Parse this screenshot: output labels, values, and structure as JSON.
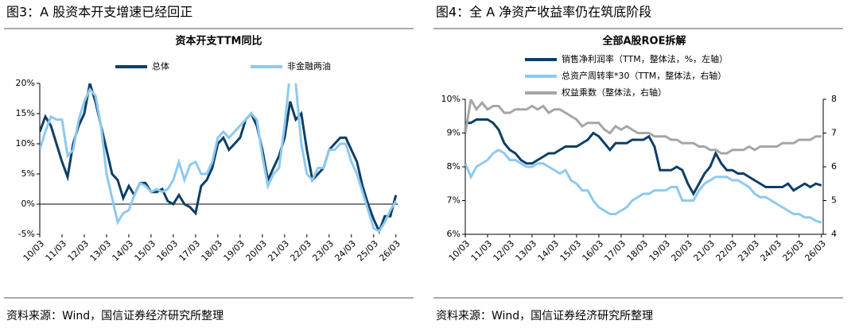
{
  "chart_data": [
    {
      "type": "line",
      "caption": "图3：A 股资本开支增速已经回正",
      "title": "资本开支TTM同比",
      "source": "资料来源：Wind，国信证券经济研究所整理",
      "x": [
        2010.17,
        2010.42,
        2010.67,
        2010.92,
        2011.17,
        2011.42,
        2011.67,
        2011.92,
        2012.17,
        2012.42,
        2012.67,
        2012.92,
        2013.17,
        2013.42,
        2013.67,
        2013.92,
        2014.17,
        2014.42,
        2014.67,
        2014.92,
        2015.17,
        2015.42,
        2015.67,
        2015.92,
        2016.17,
        2016.42,
        2016.67,
        2016.92,
        2017.17,
        2017.42,
        2017.67,
        2017.92,
        2018.17,
        2018.42,
        2018.67,
        2018.92,
        2019.17,
        2019.42,
        2019.67,
        2019.92,
        2020.17,
        2020.42,
        2020.67,
        2020.92,
        2021.17,
        2021.42,
        2021.67,
        2021.92,
        2022.17,
        2022.42,
        2022.67,
        2022.92,
        2023.17,
        2023.42,
        2023.67,
        2023.92,
        2024.17,
        2024.42,
        2024.67,
        2024.92,
        2025.17,
        2025.42,
        2025.67,
        2025.92,
        2026.17
      ],
      "xlim": [
        2010.17,
        2026.25
      ],
      "xticks": [
        {
          "value": 2010.17,
          "label": "10/03"
        },
        {
          "value": 2011.17,
          "label": "11/03"
        },
        {
          "value": 2012.17,
          "label": "12/03"
        },
        {
          "value": 2013.17,
          "label": "13/03"
        },
        {
          "value": 2014.17,
          "label": "14/03"
        },
        {
          "value": 2015.17,
          "label": "15/03"
        },
        {
          "value": 2016.17,
          "label": "16/03"
        },
        {
          "value": 2017.17,
          "label": "17/03"
        },
        {
          "value": 2018.17,
          "label": "18/03"
        },
        {
          "value": 2019.17,
          "label": "19/03"
        },
        {
          "value": 2020.17,
          "label": "20/03"
        },
        {
          "value": 2021.17,
          "label": "21/03"
        },
        {
          "value": 2022.17,
          "label": "22/03"
        },
        {
          "value": 2023.17,
          "label": "23/03"
        },
        {
          "value": 2024.17,
          "label": "24/03"
        },
        {
          "value": 2025.17,
          "label": "25/03"
        },
        {
          "value": 2026.17,
          "label": "26/03"
        }
      ],
      "ylim": [
        -5,
        20
      ],
      "yticks": [
        {
          "value": -5,
          "label": "-5%"
        },
        {
          "value": 0,
          "label": "0%"
        },
        {
          "value": 5,
          "label": "5%"
        },
        {
          "value": 10,
          "label": "10%"
        },
        {
          "value": 15,
          "label": "15%"
        },
        {
          "value": 20,
          "label": "20%"
        }
      ],
      "series": [
        {
          "name": "总体",
          "color": "#0d3f66",
          "values": [
            12,
            14.5,
            13,
            10,
            7,
            4.5,
            10,
            13,
            15,
            20,
            17,
            13,
            9,
            5,
            4,
            1,
            3,
            1.5,
            3.5,
            3.5,
            2,
            2,
            2.5,
            0.5,
            0,
            1.5,
            0,
            -0.5,
            -1.5,
            3,
            4,
            6,
            10,
            11,
            9,
            10,
            11,
            14,
            15,
            13,
            9,
            4,
            6,
            8,
            11,
            17,
            14,
            15,
            9,
            4,
            5,
            6,
            9,
            10,
            11,
            11,
            9,
            7,
            3,
            0,
            -2.5,
            -4.5,
            -2,
            -2,
            1.5
          ]
        },
        {
          "name": "非金融两油",
          "color": "#8ec9ef",
          "values": [
            9,
            12,
            14.5,
            14,
            14,
            8,
            9,
            14,
            17,
            19,
            18,
            13,
            5,
            1,
            -3,
            -1.5,
            -1,
            1.5,
            3.5,
            3,
            2,
            2.5,
            2,
            2.5,
            4,
            7,
            4,
            6.5,
            7,
            5,
            5,
            7,
            11,
            12,
            11,
            12,
            13,
            14,
            15,
            14,
            8,
            3,
            5,
            6,
            13,
            22,
            20,
            10,
            5,
            4,
            6,
            6,
            9,
            9,
            10,
            10,
            7,
            5,
            2,
            -1,
            -4,
            -4.5,
            -3,
            -1,
            0.5
          ]
        }
      ]
    },
    {
      "type": "line",
      "caption": "图4：全 A 净资产收益率仍在筑底阶段",
      "title": "全部A股ROE拆解",
      "source": "资料来源：Wind，国信证券经济研究所整理",
      "x": [
        2010.17,
        2010.42,
        2010.67,
        2010.92,
        2011.17,
        2011.42,
        2011.67,
        2011.92,
        2012.17,
        2012.42,
        2012.67,
        2012.92,
        2013.17,
        2013.42,
        2013.67,
        2013.92,
        2014.17,
        2014.42,
        2014.67,
        2014.92,
        2015.17,
        2015.42,
        2015.67,
        2015.92,
        2016.17,
        2016.42,
        2016.67,
        2016.92,
        2017.17,
        2017.42,
        2017.67,
        2017.92,
        2018.17,
        2018.42,
        2018.67,
        2018.92,
        2019.17,
        2019.42,
        2019.67,
        2019.92,
        2020.17,
        2020.42,
        2020.67,
        2020.92,
        2021.17,
        2021.42,
        2021.67,
        2021.92,
        2022.17,
        2022.42,
        2022.67,
        2022.92,
        2023.17,
        2023.42,
        2023.67,
        2023.92,
        2024.17,
        2024.42,
        2024.67,
        2024.92,
        2025.17,
        2025.42,
        2025.67,
        2025.92,
        2026.17
      ],
      "xlim": [
        2010.17,
        2026.25
      ],
      "xticks": [
        {
          "value": 2010.17,
          "label": "10/03"
        },
        {
          "value": 2011.17,
          "label": "11/03"
        },
        {
          "value": 2012.17,
          "label": "12/03"
        },
        {
          "value": 2013.17,
          "label": "13/03"
        },
        {
          "value": 2014.17,
          "label": "14/03"
        },
        {
          "value": 2015.17,
          "label": "15/03"
        },
        {
          "value": 2016.17,
          "label": "16/03"
        },
        {
          "value": 2017.17,
          "label": "17/03"
        },
        {
          "value": 2018.17,
          "label": "18/03"
        },
        {
          "value": 2019.17,
          "label": "19/03"
        },
        {
          "value": 2020.17,
          "label": "20/03"
        },
        {
          "value": 2021.17,
          "label": "21/03"
        },
        {
          "value": 2022.17,
          "label": "22/03"
        },
        {
          "value": 2023.17,
          "label": "23/03"
        },
        {
          "value": 2024.17,
          "label": "24/03"
        },
        {
          "value": 2025.17,
          "label": "25/03"
        },
        {
          "value": 2026.17,
          "label": "26/03"
        }
      ],
      "ylim": [
        6,
        10
      ],
      "yticks": [
        {
          "value": 6,
          "label": "6%"
        },
        {
          "value": 7,
          "label": "7%"
        },
        {
          "value": 8,
          "label": "8%"
        },
        {
          "value": 9,
          "label": "9%"
        },
        {
          "value": 10,
          "label": "10%"
        }
      ],
      "y2lim": [
        4,
        8
      ],
      "y2ticks": [
        4,
        5,
        6,
        7,
        8
      ],
      "series": [
        {
          "name": "销售净利润率（TTM，整体法，%，左轴）",
          "color": "#0d3f66",
          "values": [
            9.3,
            9.3,
            9.4,
            9.4,
            9.4,
            9.3,
            9.1,
            8.7,
            8.5,
            8.4,
            8.2,
            8.1,
            8.1,
            8.2,
            8.3,
            8.4,
            8.4,
            8.5,
            8.6,
            8.6,
            8.6,
            8.7,
            8.8,
            9.0,
            8.9,
            8.7,
            8.5,
            8.7,
            8.7,
            8.7,
            8.8,
            8.8,
            8.8,
            8.9,
            8.6,
            7.9,
            7.9,
            7.9,
            8.0,
            7.9,
            7.5,
            7.2,
            7.5,
            7.8,
            8.0,
            8.4,
            8.1,
            7.9,
            7.9,
            7.8,
            7.8,
            7.7,
            7.6,
            7.5,
            7.4,
            7.4,
            7.4,
            7.4,
            7.5,
            7.3,
            7.4,
            7.5,
            7.4,
            7.5,
            7.45
          ]
        },
        {
          "name": "总资产周转率*30（TTM，整体法，右轴）",
          "color": "#8ec9ef",
          "axis": "y2",
          "values": [
            6.1,
            5.7,
            6.0,
            6.1,
            6.2,
            6.4,
            6.5,
            6.4,
            6.2,
            6.2,
            6.1,
            6.0,
            6.0,
            6.1,
            6.1,
            6.0,
            5.9,
            5.8,
            5.9,
            5.6,
            5.5,
            5.3,
            5.3,
            5.0,
            4.8,
            4.7,
            4.6,
            4.6,
            4.7,
            4.8,
            5.0,
            5.1,
            5.2,
            5.2,
            5.3,
            5.3,
            5.3,
            5.4,
            5.4,
            5.0,
            5.0,
            5.0,
            5.3,
            5.5,
            5.6,
            5.7,
            5.7,
            5.7,
            5.6,
            5.6,
            5.5,
            5.4,
            5.2,
            5.1,
            5.1,
            5.0,
            4.9,
            4.8,
            4.7,
            4.6,
            4.6,
            4.5,
            4.5,
            4.4,
            4.35
          ]
        },
        {
          "name": "权益乘数（整体法，右轴）",
          "color": "#a6a6a6",
          "axis": "y2",
          "values": [
            7.0,
            8.0,
            7.7,
            7.9,
            7.7,
            7.8,
            7.8,
            7.6,
            7.6,
            7.7,
            7.7,
            7.7,
            7.8,
            7.7,
            7.8,
            7.6,
            7.7,
            7.7,
            7.6,
            7.5,
            7.4,
            7.2,
            7.3,
            7.3,
            7.3,
            7.1,
            7.0,
            7.2,
            7.1,
            7.2,
            7.1,
            7.0,
            7.0,
            7.0,
            6.9,
            6.9,
            6.9,
            6.8,
            6.8,
            6.7,
            6.7,
            6.7,
            6.6,
            6.6,
            6.5,
            6.5,
            6.4,
            6.4,
            6.5,
            6.5,
            6.5,
            6.6,
            6.5,
            6.6,
            6.6,
            6.6,
            6.6,
            6.7,
            6.7,
            6.7,
            6.8,
            6.8,
            6.8,
            6.9,
            6.9
          ]
        }
      ]
    }
  ]
}
